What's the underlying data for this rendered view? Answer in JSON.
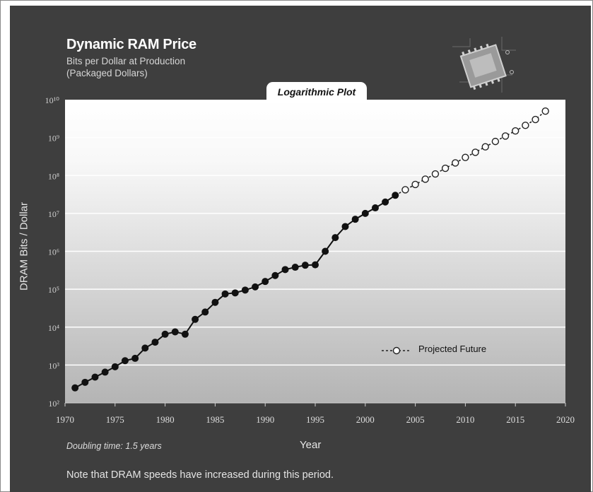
{
  "header": {
    "title": "Dynamic RAM Price",
    "subtitle_line1": "Bits per Dollar at Production",
    "subtitle_line2": "(Packaged Dollars)",
    "plot_tab": "Logarithmic Plot"
  },
  "footer": {
    "doubling": "Doubling time: 1.5 years",
    "note": "Note that DRAM speeds have increased during this period."
  },
  "chart_data": {
    "type": "line",
    "xlabel": "Year",
    "ylabel": "DRAM Bits / Dollar",
    "xlim": [
      1970,
      2020
    ],
    "ylim": [
      100,
      10000000000
    ],
    "y_scale": "log",
    "x_ticks": [
      "1970",
      "1975",
      "1980",
      "1985",
      "1990",
      "1995",
      "2000",
      "2005",
      "2010",
      "2015",
      "2020"
    ],
    "y_ticks": [
      "10²",
      "10³",
      "10⁴",
      "10⁵",
      "10⁶",
      "10⁷",
      "10⁸",
      "10⁹",
      "10¹⁰"
    ],
    "legend": {
      "placement": "lower-right",
      "entries": [
        "Projected Future"
      ]
    },
    "grid": "horizontal",
    "colors": {
      "background_dark": "#3e3e3e",
      "marker": "#111111"
    },
    "series": [
      {
        "marker": "filled",
        "x": [
          1971,
          1972,
          1973,
          1974,
          1975,
          1976,
          1977,
          1978,
          1979,
          1980,
          1981,
          1982,
          1983,
          1984,
          1985,
          1986,
          1987,
          1988,
          1989,
          1990,
          1991,
          1992,
          1993,
          1994,
          1995,
          1996,
          1997,
          1998,
          1999,
          2000,
          2001,
          2002,
          2003
        ],
        "y": [
          250,
          350,
          480,
          650,
          900,
          1300,
          1500,
          2800,
          4000,
          6500,
          7500,
          6500,
          16000,
          25000,
          45000,
          75000,
          80000,
          95000,
          115000,
          160000,
          230000,
          330000,
          380000,
          430000,
          440000,
          1000000,
          2300000,
          4500000,
          7000000,
          10000000,
          14000000,
          20000000,
          30000000
        ]
      },
      {
        "name": "Projected Future",
        "marker": "open",
        "x": [
          2003,
          2004,
          2005,
          2006,
          2007,
          2008,
          2009,
          2010,
          2011,
          2012,
          2013,
          2014,
          2015,
          2016,
          2017,
          2018
        ],
        "y": [
          30000000,
          42000000,
          58000000,
          80000000,
          110000000,
          155000000,
          215000000,
          300000000,
          410000000,
          570000000,
          790000000,
          1100000000,
          1500000000,
          2100000000,
          3000000000,
          5000000000
        ]
      }
    ]
  }
}
